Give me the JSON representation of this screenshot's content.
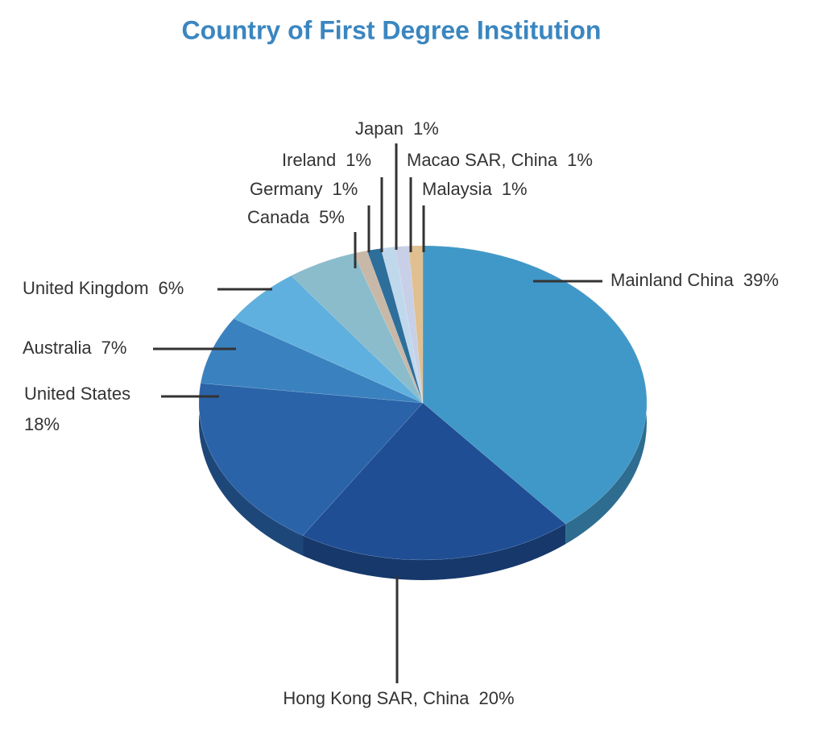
{
  "chart_data": {
    "type": "pie",
    "title": "Country of First Degree Institution",
    "categories": [
      "Mainland China",
      "Hong Kong SAR, China",
      "United States",
      "Australia",
      "United Kingdom",
      "Canada",
      "Germany",
      "Ireland",
      "Japan",
      "Macao SAR, China",
      "Malaysia"
    ],
    "values": [
      39,
      20,
      18,
      7,
      6,
      5,
      1,
      1,
      1,
      1,
      1
    ],
    "value_labels": [
      "39%",
      "20%",
      "18%",
      "7%",
      "6%",
      "5%",
      "1%",
      "1%",
      "1%",
      "1%",
      "1%"
    ],
    "colors": [
      "#4098c8",
      "#1f4e94",
      "#2a63a8",
      "#3a82bf",
      "#5fb0de",
      "#8bbccc",
      "#c8b8a8",
      "#2d6e9a",
      "#c0d8ec",
      "#c8d0e8",
      "#e0c090"
    ]
  }
}
